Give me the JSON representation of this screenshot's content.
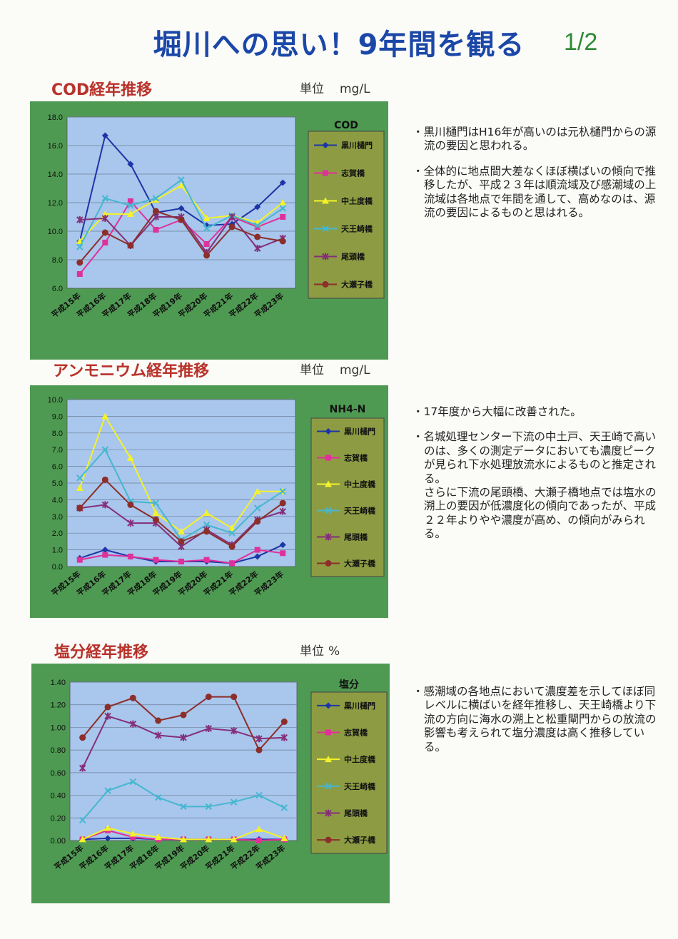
{
  "title": "堀川への思い！9年間を観る",
  "page_no": "1/2",
  "sections": [
    {
      "heading": "COD経年推移",
      "unit_label": "単位",
      "unit_value": "mg/L",
      "notes": [
        "黒川樋門はH16年が高いのは元杁樋門からの源流の要因と思われる。",
        "全体的に地点間大差なくほぼ横ばいの傾向で推移したが、平成２３年は順流域及び感潮域の上流域は各地点で年間を通して、高めなのは、源流の要因によるものと思はれる。"
      ]
    },
    {
      "heading": "アンモニウム経年推移",
      "unit_label": "単位",
      "unit_value": "mg/L",
      "notes": [
        "17年度から大幅に改善された。",
        "名城処理センター下流の中土戸、天王崎で高いのは、多くの測定データにおいても濃度ピークが見られ下水処理放流水によるものと推定される。",
        "さらに下流の尾頭橋、大瀬子橋地点では塩水の溯上の要因が低濃度化の傾向であったが、平成２２年よりやや濃度が高め、の傾向がみられる。"
      ]
    },
    {
      "heading": "塩分経年推移",
      "unit_label": "単位",
      "unit_value": "%",
      "notes": [
        "感潮域の各地点において濃度差を示してほぼ同レベルに横ばいを経年推移し、天王崎橋より下流の方向に海水の溯上と松重閘門からの放流の影響も考えられて塩分濃度は高く推移している。"
      ]
    }
  ],
  "colors": {
    "frame": "#4f9a52",
    "plot": "#a9c6ec",
    "legend_bg": "#8d9c43"
  },
  "chart_data": [
    {
      "type": "line",
      "title": "COD",
      "categories": [
        "平成15年",
        "平成16年",
        "平成17年",
        "平成18年",
        "平成19年",
        "平成20年",
        "平成21年",
        "平成22年",
        "平成23年"
      ],
      "ylim": [
        6.0,
        18.0
      ],
      "yticks": [
        "6.0",
        "8.0",
        "10.0",
        "12.0",
        "14.0",
        "16.0",
        "18.0"
      ],
      "grid": true,
      "legend_position": "right",
      "series": [
        {
          "name": "黒川樋門",
          "color": "#1d35a6",
          "marker": "diamond",
          "values": [
            9.3,
            16.7,
            14.7,
            11.3,
            11.6,
            10.4,
            10.5,
            11.7,
            13.4
          ]
        },
        {
          "name": "志賀橋",
          "color": "#e0309a",
          "marker": "square",
          "values": [
            7.0,
            9.2,
            12.1,
            10.1,
            10.8,
            9.1,
            11.0,
            10.3,
            11.0
          ]
        },
        {
          "name": "中土度橋",
          "color": "#f4f22a",
          "marker": "triangle",
          "values": [
            9.3,
            11.2,
            11.2,
            12.2,
            13.2,
            10.9,
            11.1,
            10.6,
            12.0
          ]
        },
        {
          "name": "天王崎橋",
          "color": "#45b7d0",
          "marker": "cross",
          "values": [
            8.9,
            12.3,
            11.8,
            12.3,
            13.6,
            10.2,
            11.1,
            10.4,
            11.6
          ]
        },
        {
          "name": "尾頭橋",
          "color": "#842f78",
          "marker": "star",
          "values": [
            10.8,
            10.9,
            9.0,
            11.0,
            11.0,
            8.5,
            11.0,
            8.8,
            9.5
          ]
        },
        {
          "name": "大瀬子橋",
          "color": "#8c2e2a",
          "marker": "circle",
          "values": [
            7.8,
            9.9,
            9.0,
            11.4,
            10.8,
            8.3,
            10.3,
            9.6,
            9.3
          ]
        }
      ]
    },
    {
      "type": "line",
      "title": "NH4-N",
      "categories": [
        "平成15年",
        "平成16年",
        "平成17年",
        "平成18年",
        "平成19年",
        "平成20年",
        "平成21年",
        "平成22年",
        "平成23年"
      ],
      "ylim": [
        0.0,
        10.0
      ],
      "yticks": [
        "0.0",
        "1.0",
        "2.0",
        "3.0",
        "4.0",
        "5.0",
        "6.0",
        "7.0",
        "8.0",
        "9.0",
        "10.0"
      ],
      "grid": true,
      "legend_position": "right",
      "series": [
        {
          "name": "黒川樋門",
          "color": "#1d35a6",
          "marker": "diamond",
          "values": [
            0.5,
            1.0,
            0.6,
            0.3,
            0.3,
            0.3,
            0.2,
            0.6,
            1.3
          ]
        },
        {
          "name": "志賀橋",
          "color": "#e0309a",
          "marker": "square",
          "values": [
            0.4,
            0.7,
            0.6,
            0.4,
            0.3,
            0.4,
            0.2,
            1.0,
            0.8
          ]
        },
        {
          "name": "中土度橋",
          "color": "#f4f22a",
          "marker": "triangle",
          "values": [
            4.7,
            9.0,
            6.5,
            3.2,
            2.1,
            3.2,
            2.3,
            4.5,
            4.5
          ]
        },
        {
          "name": "天王崎橋",
          "color": "#45b7d0",
          "marker": "cross",
          "values": [
            5.3,
            7.0,
            3.9,
            3.8,
            1.6,
            2.5,
            2.0,
            3.5,
            4.5
          ]
        },
        {
          "name": "尾頭橋",
          "color": "#842f78",
          "marker": "star",
          "values": [
            3.5,
            3.7,
            2.6,
            2.6,
            1.2,
            2.2,
            1.3,
            2.8,
            3.3
          ]
        },
        {
          "name": "大瀬子橋",
          "color": "#8c2e2a",
          "marker": "circle",
          "values": [
            3.5,
            5.2,
            3.7,
            2.8,
            1.5,
            2.1,
            1.2,
            2.7,
            3.8
          ]
        }
      ]
    },
    {
      "type": "line",
      "title": "塩分",
      "categories": [
        "平成15年",
        "平成16年",
        "平成17年",
        "平成18年",
        "平成19年",
        "平成20年",
        "平成21年",
        "平成22年",
        "平成23年"
      ],
      "ylim": [
        0.0,
        1.4
      ],
      "yticks": [
        "0.00",
        "0.20",
        "0.40",
        "0.60",
        "0.80",
        "1.00",
        "1.20",
        "1.40"
      ],
      "grid": true,
      "legend_position": "right",
      "series": [
        {
          "name": "黒川樋門",
          "color": "#1d35a6",
          "marker": "diamond",
          "values": [
            0.01,
            0.02,
            0.02,
            0.01,
            0.01,
            0.01,
            0.01,
            0.01,
            0.01
          ]
        },
        {
          "name": "志賀橋",
          "color": "#e0309a",
          "marker": "square",
          "values": [
            0.01,
            0.09,
            0.03,
            0.01,
            0.01,
            0.01,
            0.01,
            0.0,
            0.01
          ]
        },
        {
          "name": "中土度橋",
          "color": "#f4f22a",
          "marker": "triangle",
          "values": [
            0.01,
            0.11,
            0.06,
            0.03,
            0.01,
            0.01,
            0.01,
            0.1,
            0.02
          ]
        },
        {
          "name": "天王崎橋",
          "color": "#45b7d0",
          "marker": "cross",
          "values": [
            0.18,
            0.44,
            0.52,
            0.38,
            0.3,
            0.3,
            0.34,
            0.4,
            0.29
          ]
        },
        {
          "name": "尾頭橋",
          "color": "#842f78",
          "marker": "star",
          "values": [
            0.64,
            1.1,
            1.03,
            0.93,
            0.91,
            0.99,
            0.97,
            0.9,
            0.91
          ]
        },
        {
          "name": "大瀬子橋",
          "color": "#8c2e2a",
          "marker": "circle",
          "values": [
            0.91,
            1.18,
            1.26,
            1.06,
            1.11,
            1.27,
            1.27,
            0.8,
            1.05
          ]
        }
      ]
    }
  ]
}
